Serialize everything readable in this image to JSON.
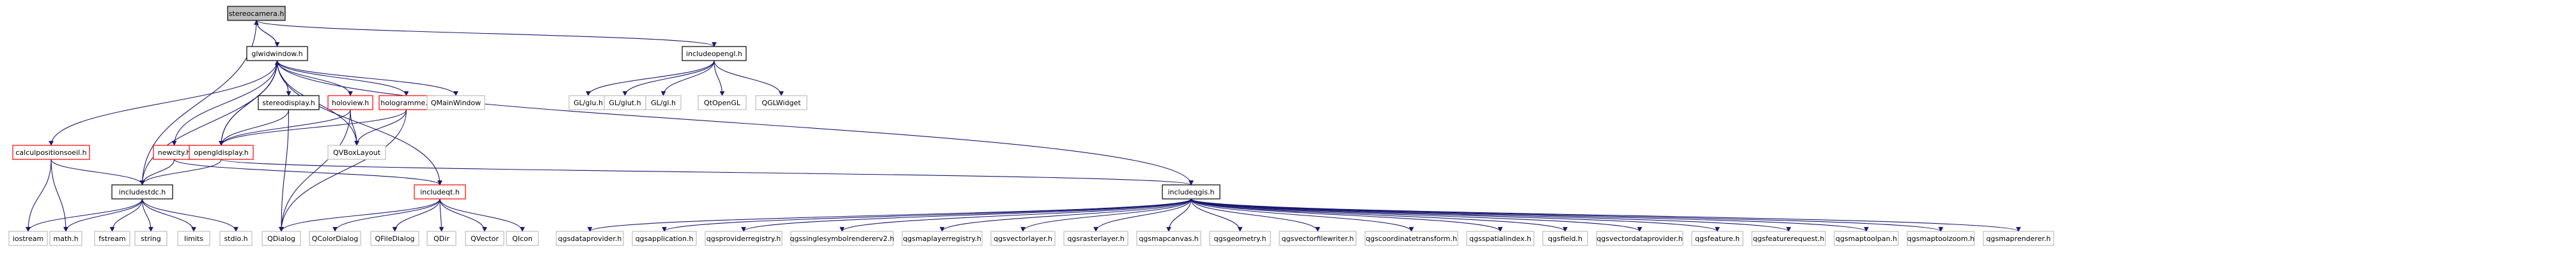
{
  "colors": {
    "edge": "#191970",
    "node_fill": "#ffffff",
    "focus_fill": "#bfbfbf",
    "focus_border": "#000000",
    "documented_border": "#000000",
    "undocumented_border": "#bfbfbf",
    "linked_border": "#ff0000"
  },
  "nodes": {
    "stereocamera": {
      "label": "stereocamera.h",
      "style": "focus"
    },
    "glwidwindow": {
      "label": "glwidwindow.h",
      "style": "documented"
    },
    "includeopengl": {
      "label": "includeopengl.h",
      "style": "documented"
    },
    "gl_glu": {
      "label": "GL/glu.h",
      "style": "undocumented"
    },
    "gl_glut": {
      "label": "GL/glut.h",
      "style": "undocumented"
    },
    "gl_gl": {
      "label": "GL/gl.h",
      "style": "undocumented"
    },
    "qtopengl": {
      "label": "QtOpenGL",
      "style": "undocumented"
    },
    "qglwidget": {
      "label": "QGLWidget",
      "style": "undocumented"
    },
    "stereodisplay": {
      "label": "stereodisplay.h",
      "style": "documented"
    },
    "holoview": {
      "label": "holoview.h",
      "style": "linked"
    },
    "hologramme": {
      "label": "hologramme.h",
      "style": "linked"
    },
    "qmainwindow": {
      "label": "QMainWindow",
      "style": "undocumented"
    },
    "calculpositions": {
      "label": "calculpositionsoeil.h",
      "style": "linked"
    },
    "newcity": {
      "label": "newcity.h",
      "style": "linked"
    },
    "opengldisplay": {
      "label": "opengldisplay.h",
      "style": "linked"
    },
    "qvboxlayout": {
      "label": "QVBoxLayout",
      "style": "undocumented"
    },
    "includeqgis": {
      "label": "includeqgis.h",
      "style": "documented"
    },
    "includestdc": {
      "label": "includestdc.h",
      "style": "documented"
    },
    "includeqt": {
      "label": "includeqt.h",
      "style": "linked"
    },
    "iostream": {
      "label": "iostream",
      "style": "undocumented"
    },
    "math": {
      "label": "math.h",
      "style": "undocumented"
    },
    "fstream": {
      "label": "fstream",
      "style": "undocumented"
    },
    "string": {
      "label": "string",
      "style": "undocumented"
    },
    "limits": {
      "label": "limits",
      "style": "undocumented"
    },
    "stdio": {
      "label": "stdio.h",
      "style": "undocumented"
    },
    "qdialog": {
      "label": "QDialog",
      "style": "undocumented"
    },
    "qcolordialog": {
      "label": "QColorDialog",
      "style": "undocumented"
    },
    "qfiledialog": {
      "label": "QFileDialog",
      "style": "undocumented"
    },
    "qdir": {
      "label": "QDir",
      "style": "undocumented"
    },
    "qvector": {
      "label": "QVector",
      "style": "undocumented"
    },
    "qicon": {
      "label": "QIcon",
      "style": "undocumented"
    },
    "qgsdataprovider": {
      "label": "qgsdataprovider.h",
      "style": "undocumented"
    },
    "qgsapplication": {
      "label": "qgsapplication.h",
      "style": "undocumented"
    },
    "qgsproviderregistry": {
      "label": "qgsproviderregistry.h",
      "style": "undocumented"
    },
    "qgssinglesymbolrenderer": {
      "label": "qgssinglesymbolrendererv2.h",
      "style": "undocumented"
    },
    "qgsmaplayerregistry": {
      "label": "qgsmaplayerregistry.h",
      "style": "undocumented"
    },
    "qgsvectorlayer": {
      "label": "qgsvectorlayer.h",
      "style": "undocumented"
    },
    "qgsrasterlayer": {
      "label": "qgsrasterlayer.h",
      "style": "undocumented"
    },
    "qgsmapcanvas": {
      "label": "qgsmapcanvas.h",
      "style": "undocumented"
    },
    "qgsgeometry": {
      "label": "qgsgeometry.h",
      "style": "undocumented"
    },
    "qgsvectorfilewriter": {
      "label": "qgsvectorfilewriter.h",
      "style": "undocumented"
    },
    "qgscoordinatetransform": {
      "label": "qgscoordinatetransform.h",
      "style": "undocumented"
    },
    "qgsspatialindex": {
      "label": "qgsspatialindex.h",
      "style": "undocumented"
    },
    "qgsfield": {
      "label": "qgsfield.h",
      "style": "undocumented"
    },
    "qgsvectordataprovider": {
      "label": "qgsvectordataprovider.h",
      "style": "undocumented"
    },
    "qgsfeature": {
      "label": "qgsfeature.h",
      "style": "undocumented"
    },
    "qgsfeaturerequest": {
      "label": "qgsfeaturerequest.h",
      "style": "undocumented"
    },
    "qgsmaptoolpan": {
      "label": "qgsmaptoolpan.h",
      "style": "undocumented"
    },
    "qgsmaptoolzoom": {
      "label": "qgsmaptoolzoom.h",
      "style": "undocumented"
    },
    "qgsmaprenderer": {
      "label": "qgsmaprenderer.h",
      "style": "undocumented"
    }
  },
  "edges": [
    [
      "stereocamera",
      "glwidwindow"
    ],
    [
      "stereocamera",
      "includeopengl"
    ],
    [
      "stereocamera",
      "includestdc"
    ],
    [
      "includeopengl",
      "gl_glu"
    ],
    [
      "includeopengl",
      "gl_glut"
    ],
    [
      "includeopengl",
      "gl_gl"
    ],
    [
      "includeopengl",
      "qtopengl"
    ],
    [
      "includeopengl",
      "qglwidget"
    ],
    [
      "glwidwindow",
      "stereocamera"
    ],
    [
      "glwidwindow",
      "stereodisplay"
    ],
    [
      "glwidwindow",
      "holoview"
    ],
    [
      "glwidwindow",
      "hologramme"
    ],
    [
      "glwidwindow",
      "qmainwindow"
    ],
    [
      "glwidwindow",
      "calculpositions"
    ],
    [
      "glwidwindow",
      "newcity"
    ],
    [
      "glwidwindow",
      "opengldisplay"
    ],
    [
      "glwidwindow",
      "qvboxlayout"
    ],
    [
      "glwidwindow",
      "includeqgis"
    ],
    [
      "glwidwindow",
      "includestdc"
    ],
    [
      "glwidwindow",
      "includeqt"
    ],
    [
      "stereodisplay",
      "opengldisplay"
    ],
    [
      "stereodisplay",
      "qdialog"
    ],
    [
      "holoview",
      "opengldisplay"
    ],
    [
      "holoview",
      "qvboxlayout"
    ],
    [
      "holoview",
      "qdialog"
    ],
    [
      "hologramme",
      "opengldisplay"
    ],
    [
      "hologramme",
      "qvboxlayout"
    ],
    [
      "hologramme",
      "qdialog"
    ],
    [
      "opengldisplay",
      "glwidwindow"
    ],
    [
      "opengldisplay",
      "includestdc"
    ],
    [
      "opengldisplay",
      "includeqgis"
    ],
    [
      "newcity",
      "includestdc"
    ],
    [
      "newcity",
      "includeqt"
    ],
    [
      "calculpositions",
      "includestdc"
    ],
    [
      "calculpositions",
      "iostream"
    ],
    [
      "calculpositions",
      "math"
    ],
    [
      "includestdc",
      "iostream"
    ],
    [
      "includestdc",
      "math"
    ],
    [
      "includestdc",
      "fstream"
    ],
    [
      "includestdc",
      "string"
    ],
    [
      "includestdc",
      "limits"
    ],
    [
      "includestdc",
      "stdio"
    ],
    [
      "includeqt",
      "qdialog"
    ],
    [
      "includeqt",
      "qcolordialog"
    ],
    [
      "includeqt",
      "qfiledialog"
    ],
    [
      "includeqt",
      "qdir"
    ],
    [
      "includeqt",
      "qvector"
    ],
    [
      "includeqt",
      "qicon"
    ],
    [
      "includeqgis",
      "qgsdataprovider"
    ],
    [
      "includeqgis",
      "qgsapplication"
    ],
    [
      "includeqgis",
      "qgsproviderregistry"
    ],
    [
      "includeqgis",
      "qgssinglesymbolrenderer"
    ],
    [
      "includeqgis",
      "qgsmaplayerregistry"
    ],
    [
      "includeqgis",
      "qgsvectorlayer"
    ],
    [
      "includeqgis",
      "qgsrasterlayer"
    ],
    [
      "includeqgis",
      "qgsmapcanvas"
    ],
    [
      "includeqgis",
      "qgsgeometry"
    ],
    [
      "includeqgis",
      "qgsvectorfilewriter"
    ],
    [
      "includeqgis",
      "qgscoordinatetransform"
    ],
    [
      "includeqgis",
      "qgsspatialindex"
    ],
    [
      "includeqgis",
      "qgsfield"
    ],
    [
      "includeqgis",
      "qgsvectordataprovider"
    ],
    [
      "includeqgis",
      "qgsfeature"
    ],
    [
      "includeqgis",
      "qgsfeaturerequest"
    ],
    [
      "includeqgis",
      "qgsmaptoolpan"
    ],
    [
      "includeqgis",
      "qgsmaptoolzoom"
    ],
    [
      "includeqgis",
      "qgsmaprenderer"
    ]
  ]
}
